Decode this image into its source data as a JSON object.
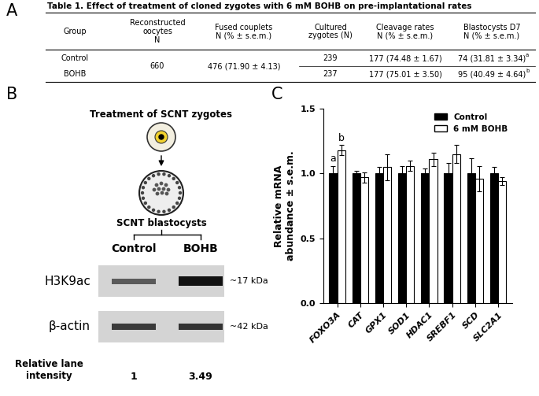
{
  "panel_labels": [
    "A",
    "B",
    "C"
  ],
  "table": {
    "title": "Table 1. Effect of treatment of cloned zygotes with 6 mM BOHB on pre-implantational rates",
    "columns": [
      "Group",
      "Reconstructed\noocytes\nN",
      "Fused couplets\nN (% ± s.e.m.)",
      "Cultured\nzygotes (N)",
      "Cleavage rates\nN (% ± s.e.m.)",
      "Blastocysts D7\nN (% ± s.e.m.)"
    ],
    "merged_cells": [
      "660",
      "476 (71.90 ± 4.13)"
    ],
    "rows": [
      {
        "cells": [
          "Control",
          "239",
          "177 (74.48 ± 1.67)",
          "74 (31.81 ± 3.34)"
        ],
        "superscript": "a"
      },
      {
        "cells": [
          "BOHB",
          "237",
          "177 (75.01 ± 3.50)",
          "95 (40.49 ± 4.64)"
        ],
        "superscript": "b"
      }
    ]
  },
  "diagram": {
    "top_label": "Treatment of SCNT zygotes",
    "bottom_label": "SCNT blastocysts",
    "lanes": [
      "Control",
      "BOHB"
    ],
    "blots": [
      {
        "protein": "H3K9ac",
        "size": "~17 kDa"
      },
      {
        "protein": "β-actin",
        "size": "~42 kDa"
      }
    ],
    "intensity_label": "Relative lane\nintensity",
    "relative_intensity": [
      1,
      3.49
    ]
  },
  "chart_data": {
    "type": "bar",
    "ylabel": "Relative mRNA\nabundance ± s.e.m.",
    "categories": [
      "FOXO3A",
      "CAT",
      "GPX1",
      "SOD1",
      "HDAC1",
      "SREBF1",
      "SCD",
      "SLC2A1"
    ],
    "series": [
      {
        "name": "Control",
        "color": "#000000",
        "values": [
          1.0,
          1.0,
          1.0,
          1.0,
          1.0,
          1.0,
          1.0,
          1.0
        ],
        "errors": [
          0.06,
          0.02,
          0.05,
          0.06,
          0.04,
          0.08,
          0.12,
          0.05
        ]
      },
      {
        "name": "6 mM BOHB",
        "color": "#ffffff",
        "values": [
          1.18,
          0.97,
          1.05,
          1.06,
          1.11,
          1.15,
          0.96,
          0.94
        ],
        "errors": [
          0.04,
          0.04,
          0.1,
          0.04,
          0.05,
          0.07,
          0.1,
          0.03
        ]
      }
    ],
    "ylim": [
      0,
      1.5
    ],
    "yticks": [
      {
        "value": 0,
        "label": "0.0"
      },
      {
        "value": 0.5,
        "label": "0.5"
      },
      {
        "value": 1.0,
        "label": "1.0"
      },
      {
        "value": 1.5,
        "label": "1.5"
      }
    ],
    "legend": "upper right",
    "annotations": [
      {
        "text": "a",
        "category": "FOXO3A",
        "series": "Control"
      },
      {
        "text": "b",
        "category": "FOXO3A",
        "series": "6 mM BOHB"
      }
    ]
  }
}
